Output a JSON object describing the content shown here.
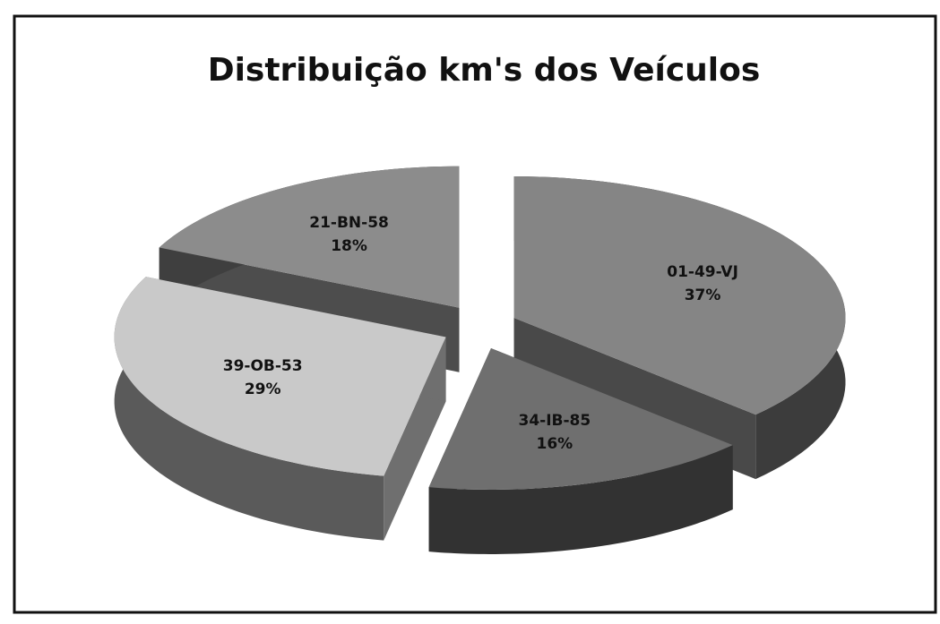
{
  "chart_data": {
    "type": "pie",
    "title": "Distribuição km's dos Veículos",
    "categories": [
      "01-49-VJ",
      "34-IB-85",
      "39-OB-53",
      "21-BN-58"
    ],
    "values": [
      37,
      16,
      29,
      18
    ],
    "value_labels": [
      "37%",
      "16%",
      "29%",
      "18%"
    ],
    "colors": [
      "#858585",
      "#6f6f6f",
      "#c9c9c9",
      "#8c8c8c"
    ]
  }
}
